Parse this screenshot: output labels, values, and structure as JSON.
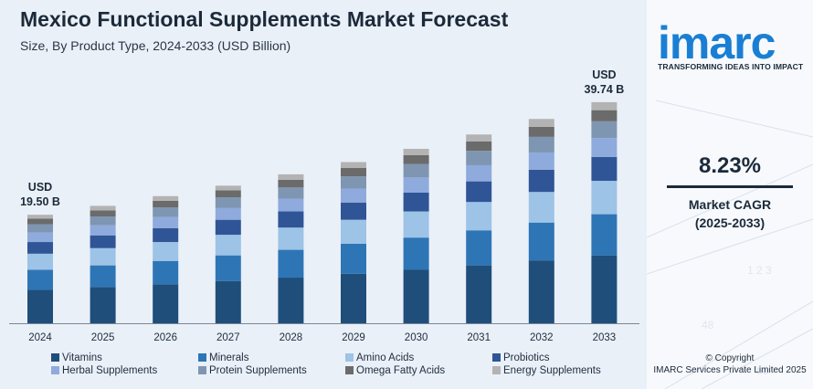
{
  "title": "Mexico Functional Supplements Market Forecast",
  "subtitle": "Size, By Product Type, 2024-2033 (USD Billion)",
  "brand": {
    "logo": "imarc",
    "tagline": "TRANSFORMING IDEAS INTO IMPACT",
    "logo_color": "#1a7fd4"
  },
  "cagr": {
    "value": "8.23%",
    "label_line1": "Market CAGR",
    "label_line2": "(2025-2033)"
  },
  "copyright": {
    "line1": "© Copyright",
    "line2": "IMARC Services Private Limited 2025"
  },
  "chart_data": {
    "type": "bar",
    "stacked": true,
    "categories": [
      "2024",
      "2025",
      "2026",
      "2027",
      "2028",
      "2029",
      "2030",
      "2031",
      "2032",
      "2033"
    ],
    "totals": [
      19.5,
      21.1,
      22.85,
      24.73,
      26.77,
      28.97,
      31.35,
      33.93,
      36.72,
      39.74
    ],
    "annotations": [
      {
        "category": "2024",
        "line1": "USD",
        "line2": "19.50 B"
      },
      {
        "category": "2033",
        "line1": "USD",
        "line2": "39.74 B"
      }
    ],
    "series": [
      {
        "name": "Vitamins",
        "color": "#1f4e7a",
        "values": [
          6.0,
          6.5,
          7.0,
          7.6,
          8.2,
          8.9,
          9.6,
          10.4,
          11.3,
          12.2
        ]
      },
      {
        "name": "Minerals",
        "color": "#2e75b6",
        "values": [
          3.6,
          3.9,
          4.2,
          4.6,
          5.0,
          5.4,
          5.8,
          6.3,
          6.8,
          7.4
        ]
      },
      {
        "name": "Amino Acids",
        "color": "#9dc3e6",
        "values": [
          2.9,
          3.1,
          3.4,
          3.7,
          4.0,
          4.3,
          4.7,
          5.1,
          5.5,
          6.0
        ]
      },
      {
        "name": "Probiotics",
        "color": "#2f5597",
        "values": [
          2.1,
          2.3,
          2.5,
          2.7,
          2.9,
          3.1,
          3.4,
          3.7,
          4.0,
          4.3
        ]
      },
      {
        "name": "Herbal Supplements",
        "color": "#8faadc",
        "values": [
          1.7,
          1.8,
          2.0,
          2.1,
          2.3,
          2.5,
          2.7,
          2.9,
          3.1,
          3.4
        ]
      },
      {
        "name": "Protein Supplements",
        "color": "#7f96b2",
        "values": [
          1.5,
          1.6,
          1.7,
          1.9,
          2.0,
          2.2,
          2.4,
          2.6,
          2.8,
          3.0
        ]
      },
      {
        "name": "Omega Fatty Acids",
        "color": "#6b6b6b",
        "values": [
          1.0,
          1.1,
          1.2,
          1.3,
          1.4,
          1.5,
          1.6,
          1.7,
          1.8,
          2.0
        ]
      },
      {
        "name": "Energy Supplements",
        "color": "#b3b3b3",
        "values": [
          0.7,
          0.8,
          0.85,
          0.83,
          0.97,
          1.07,
          1.15,
          1.23,
          1.42,
          1.44
        ]
      }
    ],
    "xlabel": "",
    "ylabel": "",
    "ylim": [
      0,
      43
    ],
    "grid": false,
    "legend_position": "bottom"
  }
}
